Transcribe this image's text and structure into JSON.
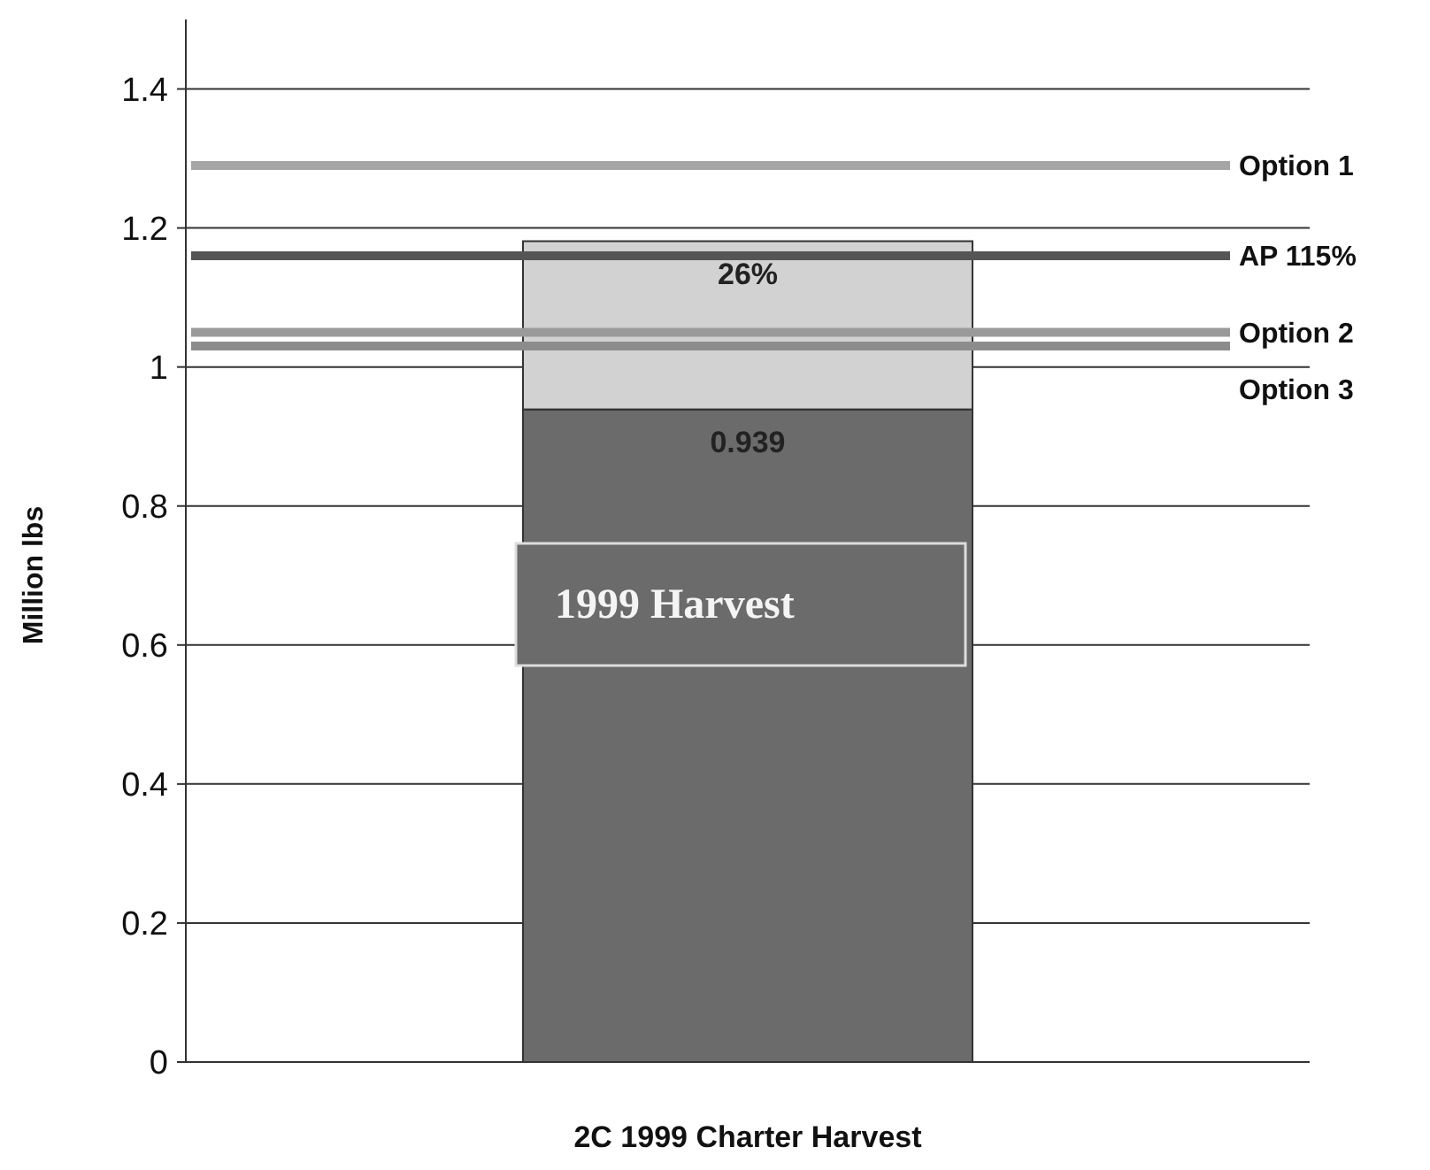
{
  "chart_data": {
    "type": "bar",
    "stacked": true,
    "ylabel": "Million lbs",
    "categories": [
      "2C 1999 Charter Harvest"
    ],
    "series": [
      {
        "name": "1999 Harvest",
        "color": "#6b6b6b",
        "values": [
          0.939
        ],
        "value_labels": [
          "0.939"
        ]
      },
      {
        "color": "#d2d2d2",
        "values": [
          0.242
        ]
      }
    ],
    "annotations": [
      "26%"
    ],
    "ylim": [
      0,
      1.5
    ],
    "yticks": [
      0,
      0.2,
      0.4,
      0.6,
      0.8,
      1,
      1.2,
      1.4
    ],
    "grid": "y",
    "ref_lines": [
      {
        "axis": "y",
        "value": 1.29,
        "label": "Option 1",
        "color": "#a5a5a5"
      },
      {
        "axis": "y",
        "value": 1.16,
        "label": "AP 115%",
        "color": "#555555"
      },
      {
        "axis": "y",
        "value": 1.05,
        "label": "Option 2",
        "color": "#9a9a9a"
      },
      {
        "axis": "y",
        "value": 1.03,
        "label": "Option 3",
        "color": "#8c8c8c"
      }
    ]
  }
}
